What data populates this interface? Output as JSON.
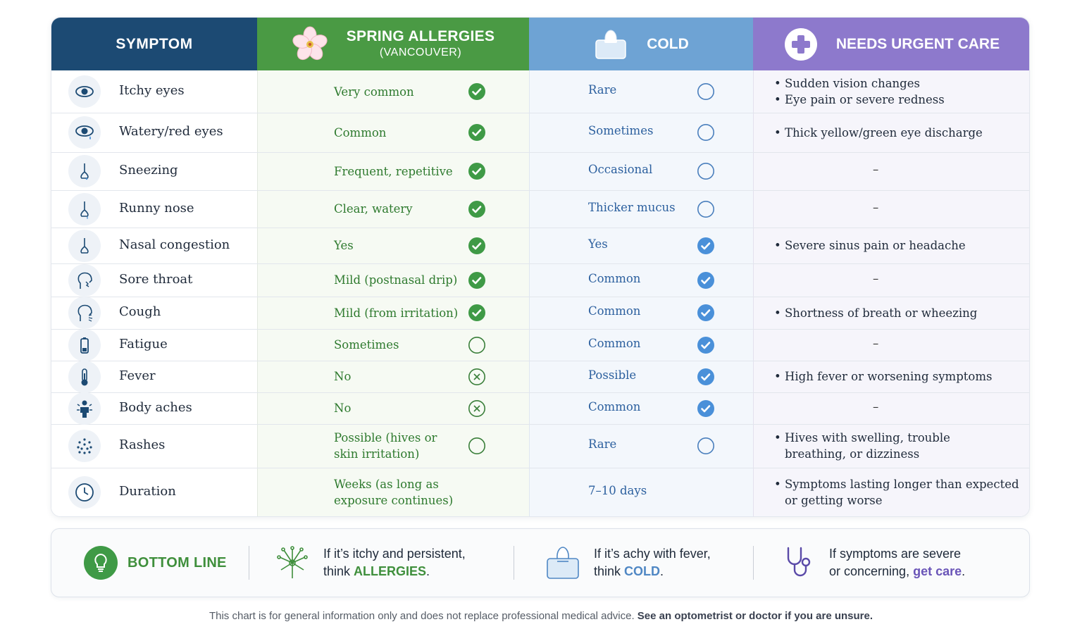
{
  "header": {
    "symptom": "SYMPTOM",
    "allergies_title": "SPRING ALLERGIES",
    "allergies_subtitle": "(VANCOUVER)",
    "cold": "COLD",
    "urgent": "NEEDS URGENT CARE"
  },
  "colors": {
    "symptom_header": "#1c4a73",
    "allergy_header": "#4a9a44",
    "cold_header": "#6ea3d4",
    "urgent_header": "#8d79cc",
    "allergy_check": "#3f9a46",
    "cold_check": "#4a90d9"
  },
  "rows": [
    {
      "icon": "eye-icon",
      "symptom": "Itchy eyes",
      "allergy": [
        "Very common"
      ],
      "allergy_mark": "check",
      "cold": "Rare",
      "cold_mark": "empty",
      "urgent": [
        "Sudden vision changes",
        "Eye pain or severe redness"
      ]
    },
    {
      "icon": "watery-eye-icon",
      "symptom": "Watery/red eyes",
      "allergy": [
        "Common"
      ],
      "allergy_mark": "check",
      "cold": "Sometimes",
      "cold_mark": "empty",
      "urgent": [
        "Thick yellow/green eye discharge"
      ]
    },
    {
      "icon": "nose-icon",
      "symptom": "Sneezing",
      "allergy": [
        "Frequent, repetitive"
      ],
      "allergy_mark": "check",
      "cold": "Occasional",
      "cold_mark": "empty",
      "urgent": [],
      "dash": "–"
    },
    {
      "icon": "runny-nose-icon",
      "symptom": "Runny nose",
      "allergy": [
        "Clear, watery"
      ],
      "allergy_mark": "check",
      "cold": "Thicker mucus",
      "cold_mark": "empty",
      "urgent": [],
      "dash": "–"
    },
    {
      "icon": "congested-nose-icon",
      "symptom": "Nasal congestion",
      "allergy": [
        "Yes"
      ],
      "allergy_mark": "check",
      "cold": "Yes",
      "cold_mark": "check",
      "urgent": [
        "Severe sinus pain or headache"
      ]
    },
    {
      "icon": "throat-icon",
      "symptom": "Sore throat",
      "allergy": [
        "Mild (postnasal drip)"
      ],
      "allergy_mark": "check",
      "cold": "Common",
      "cold_mark": "check",
      "urgent": [],
      "dash": "–"
    },
    {
      "icon": "cough-icon",
      "symptom": "Cough",
      "allergy": [
        "Mild (from irritation)"
      ],
      "allergy_mark": "check",
      "cold": "Common",
      "cold_mark": "check",
      "urgent": [
        "Shortness of breath or wheezing"
      ]
    },
    {
      "icon": "battery-low-icon",
      "symptom": "Fatigue",
      "allergy": [
        "Sometimes"
      ],
      "allergy_mark": "empty",
      "cold": "Common",
      "cold_mark": "check",
      "urgent": [],
      "dash": "–"
    },
    {
      "icon": "thermometer-icon",
      "symptom": "Fever",
      "allergy": [
        "No"
      ],
      "allergy_mark": "cross",
      "cold": "Possible",
      "cold_mark": "check",
      "urgent": [
        "High fever or worsening symptoms"
      ]
    },
    {
      "icon": "body-aches-icon",
      "symptom": "Body aches",
      "allergy": [
        "No"
      ],
      "allergy_mark": "cross",
      "cold": "Common",
      "cold_mark": "check",
      "urgent": [],
      "dash": "–"
    },
    {
      "icon": "rash-dots-icon",
      "symptom": "Rashes",
      "allergy": [
        "Possible (hives or",
        "skin irritation)"
      ],
      "allergy_mark": "empty",
      "cold": "Rare",
      "cold_mark": "empty",
      "urgent": [
        "Hives with swelling, trouble",
        "breathing, or dizziness"
      ],
      "urgent_single": true
    },
    {
      "icon": "clock-icon",
      "symptom": "Duration",
      "allergy": [
        "Weeks (as long as",
        "exposure continues)"
      ],
      "allergy_mark": "none",
      "cold": "7–10 days",
      "cold_mark": "none",
      "urgent": [
        "Symptoms lasting longer than expected",
        "or getting worse"
      ],
      "urgent_single": true
    }
  ],
  "bottom": {
    "title": "BOTTOM LINE",
    "allergy_pre": "If it’s itchy and persistent,",
    "allergy_think": "think ",
    "allergy_em": "ALLERGIES",
    "cold_pre": "If it’s achy with fever,",
    "cold_think": "think ",
    "cold_em": "COLD",
    "care_pre": "If symptoms are severe",
    "care_mid": "or concerning, ",
    "care_em": "get care",
    "period": "."
  },
  "footer": {
    "normal": "This chart is for general information only and does not replace professional medical advice.",
    "bold": "See an optometrist or doctor if you are unsure."
  }
}
